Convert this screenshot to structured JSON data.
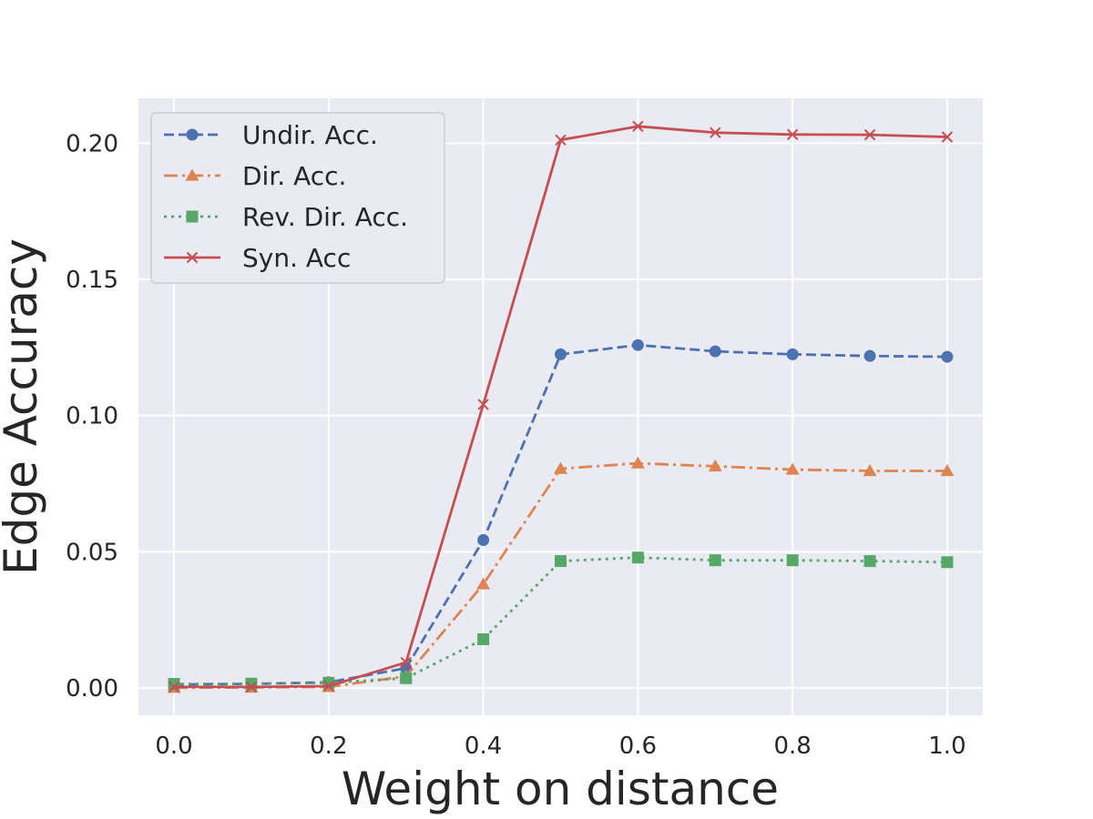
{
  "chart_data": {
    "type": "line",
    "title": "",
    "xlabel": "Weight on distance",
    "ylabel": "Edge Accuracy",
    "x": [
      0.0,
      0.1,
      0.2,
      0.3,
      0.4,
      0.5,
      0.6,
      0.7,
      0.8,
      0.9,
      1.0
    ],
    "xlim": [
      -0.046,
      1.046
    ],
    "ylim": [
      -0.01,
      0.2165
    ],
    "xticks": [
      0.0,
      0.2,
      0.4,
      0.6,
      0.8,
      1.0
    ],
    "xtick_labels": [
      "0.0",
      "0.2",
      "0.4",
      "0.6",
      "0.8",
      "1.0"
    ],
    "yticks": [
      0.0,
      0.05,
      0.1,
      0.15,
      0.2
    ],
    "ytick_labels": [
      "0.00",
      "0.05",
      "0.10",
      "0.15",
      "0.20"
    ],
    "grid": true,
    "legend_position": "top-left",
    "series": [
      {
        "name": "Undir. Acc.",
        "color": "#4c72b0",
        "dash": "dashed",
        "marker": "circle",
        "values": [
          0.0013,
          0.0015,
          0.0021,
          0.0073,
          0.0543,
          0.1225,
          0.1259,
          0.1236,
          0.1225,
          0.1219,
          0.1216
        ]
      },
      {
        "name": "Dir. Acc.",
        "color": "#dd8452",
        "dash": "dashdot",
        "marker": "triangle",
        "values": [
          0.0001,
          0.0002,
          0.0004,
          0.0043,
          0.0381,
          0.0805,
          0.0825,
          0.0814,
          0.0802,
          0.0797,
          0.0797
        ]
      },
      {
        "name": "Rev. Dir. Acc.",
        "color": "#55a868",
        "dash": "dotted",
        "marker": "square",
        "values": [
          0.0015,
          0.0016,
          0.0019,
          0.0036,
          0.0179,
          0.0466,
          0.0479,
          0.0469,
          0.0469,
          0.0466,
          0.0462
        ]
      },
      {
        "name": "Syn. Acc",
        "color": "#c44e52",
        "dash": "solid",
        "marker": "x",
        "values": [
          0.0004,
          0.0004,
          0.0007,
          0.0094,
          0.1041,
          0.2012,
          0.2062,
          0.2039,
          0.2032,
          0.2031,
          0.2023
        ]
      }
    ]
  }
}
